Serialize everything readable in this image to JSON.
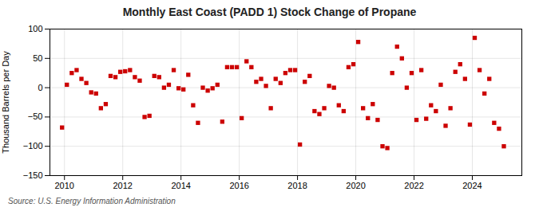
{
  "chart_data": {
    "type": "scatter",
    "title": "Monthly East Coast (PADD 1) Stock Change of Propane",
    "ylabel": "Thousand Barrels per Day",
    "source": "Source: U.S. Energy Information Administration",
    "color": "#cc0000",
    "marker": "square",
    "grid": true,
    "xlim": [
      2009.5,
      2025.7
    ],
    "xticks": [
      2010,
      2012,
      2014,
      2016,
      2018,
      2020,
      2022,
      2024
    ],
    "ylim": [
      -150,
      100
    ],
    "yticks": [
      -150,
      -100,
      -50,
      0,
      50,
      100
    ],
    "x": [
      2009.917,
      2010.083,
      2010.25,
      2010.417,
      2010.583,
      2010.75,
      2010.917,
      2011.083,
      2011.25,
      2011.417,
      2011.583,
      2011.75,
      2011.917,
      2012.083,
      2012.25,
      2012.417,
      2012.583,
      2012.75,
      2012.917,
      2013.083,
      2013.25,
      2013.417,
      2013.583,
      2013.75,
      2013.917,
      2014.083,
      2014.25,
      2014.417,
      2014.583,
      2014.75,
      2014.917,
      2015.083,
      2015.25,
      2015.417,
      2015.583,
      2015.75,
      2015.917,
      2016.083,
      2016.25,
      2016.417,
      2016.583,
      2016.75,
      2016.917,
      2017.083,
      2017.25,
      2017.417,
      2017.583,
      2017.75,
      2017.917,
      2018.083,
      2018.25,
      2018.417,
      2018.583,
      2018.75,
      2018.917,
      2019.083,
      2019.25,
      2019.417,
      2019.583,
      2019.75,
      2019.917,
      2020.083,
      2020.25,
      2020.417,
      2020.583,
      2020.75,
      2020.917,
      2021.083,
      2021.25,
      2021.417,
      2021.583,
      2021.75,
      2021.917,
      2022.083,
      2022.25,
      2022.417,
      2022.583,
      2022.75,
      2022.917,
      2023.083,
      2023.25,
      2023.417,
      2023.583,
      2023.75,
      2023.917,
      2024.083,
      2024.25,
      2024.417,
      2024.583,
      2024.75,
      2024.917,
      2025.083
    ],
    "values": [
      -68,
      5,
      25,
      30,
      15,
      8,
      -8,
      -10,
      -35,
      -28,
      20,
      18,
      27,
      28,
      30,
      18,
      12,
      -50,
      -48,
      20,
      18,
      0,
      5,
      30,
      -1,
      -3,
      22,
      -30,
      -60,
      0,
      -5,
      -1,
      5,
      -58,
      35,
      35,
      35,
      -52,
      45,
      35,
      10,
      15,
      3,
      -35,
      15,
      8,
      25,
      30,
      30,
      -97,
      10,
      20,
      -40,
      -45,
      -35,
      3,
      0,
      -30,
      -40,
      35,
      40,
      78,
      -35,
      -52,
      -28,
      -55,
      -100,
      -103,
      25,
      70,
      50,
      0,
      25,
      -55,
      30,
      -53,
      -30,
      -40,
      5,
      -65,
      -35,
      27,
      40,
      15,
      -63,
      85,
      30,
      -10,
      15,
      -60,
      -70,
      -100
    ]
  }
}
